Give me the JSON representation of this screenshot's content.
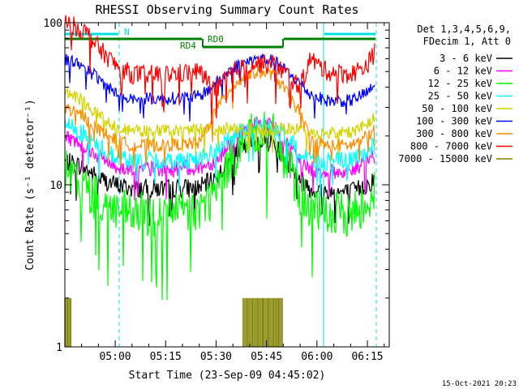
{
  "chart_data": {
    "type": "line",
    "title": "RHESSI Observing Summary Count Rates",
    "ylabel": "Count Rate (s⁻¹ detector⁻¹)",
    "xlabel": "Start Time (23-Sep-09 04:45:02)",
    "yscale": "log",
    "ylim": [
      1,
      100
    ],
    "xlim": [
      "04:45:02",
      "06:21:30"
    ],
    "y_ticks": [
      "1",
      "10",
      "100"
    ],
    "x_ticks": [
      "05:00",
      "05:15",
      "05:30",
      "05:45",
      "06:00",
      "06:15"
    ],
    "legend_title": [
      "Det 1,3,4,5,6,9,",
      "FDecim 1, Att 0"
    ],
    "legend_position": "right, outside plot",
    "series": [
      {
        "name": "3 - 6 keV",
        "color": "#000000",
        "x": [
          "04:45",
          "04:50",
          "04:55",
          "05:00",
          "05:05",
          "05:15",
          "05:25",
          "05:30",
          "05:35",
          "05:40",
          "05:43",
          "05:47",
          "05:50",
          "05:55",
          "05:58",
          "06:03",
          "06:10",
          "06:15",
          "06:21"
        ],
        "y": [
          14,
          13,
          11,
          10,
          9.5,
          9.5,
          9.6,
          11,
          15,
          18,
          19,
          18,
          15,
          11,
          9.5,
          9,
          9,
          10,
          12
        ]
      },
      {
        "name": "6 - 12 keV",
        "color": "#ff00ff",
        "x": [
          "04:45",
          "04:50",
          "04:55",
          "05:00",
          "05:05",
          "05:15",
          "05:25",
          "05:30",
          "05:35",
          "05:40",
          "05:43",
          "05:47",
          "05:50",
          "05:55",
          "05:58",
          "06:03",
          "06:10",
          "06:15",
          "06:21"
        ],
        "y": [
          20,
          18,
          15,
          13,
          12.5,
          12.5,
          12.8,
          14,
          19,
          23,
          24,
          23,
          19,
          14,
          12.5,
          12,
          12,
          14,
          17
        ]
      },
      {
        "name": "12 - 25 keV",
        "color": "#00ff00",
        "x": [
          "04:45",
          "04:50",
          "04:55",
          "05:00",
          "05:05",
          "05:15",
          "05:25",
          "05:30",
          "05:35",
          "05:40",
          "05:43",
          "05:47",
          "05:50",
          "05:55",
          "05:58",
          "06:03",
          "06:10",
          "06:15",
          "06:21"
        ],
        "y": [
          12,
          10,
          8,
          7,
          6.5,
          6.5,
          7,
          9,
          15,
          20,
          21,
          20,
          15,
          9,
          7,
          6.5,
          6.5,
          8,
          11
        ]
      },
      {
        "name": "25 - 50 keV",
        "color": "#00ffff",
        "x": [
          "04:45",
          "04:50",
          "04:55",
          "05:00",
          "05:05",
          "05:15",
          "05:25",
          "05:30",
          "05:35",
          "05:40",
          "05:43",
          "05:47",
          "05:50",
          "05:55",
          "05:58",
          "06:03",
          "06:10",
          "06:15",
          "06:21"
        ],
        "y": [
          24,
          21,
          17,
          15,
          14,
          14,
          14.5,
          16,
          20,
          22,
          23,
          22,
          20,
          16,
          14.5,
          14,
          14,
          16,
          20
        ]
      },
      {
        "name": "50 - 100 keV",
        "color": "#d4d400",
        "x": [
          "04:45",
          "04:50",
          "04:55",
          "05:00",
          "05:05",
          "05:15",
          "05:25",
          "05:30",
          "05:35",
          "05:40",
          "05:43",
          "05:47",
          "05:50",
          "05:55",
          "05:58",
          "06:03",
          "06:10",
          "06:15",
          "06:21"
        ],
        "y": [
          38,
          33,
          27,
          23,
          21.5,
          21.5,
          22,
          22,
          22,
          22,
          22,
          22,
          22,
          22,
          21,
          21,
          21,
          24,
          31
        ]
      },
      {
        "name": "100 - 300 keV",
        "color": "#0000ff",
        "x": [
          "04:45",
          "04:50",
          "04:55",
          "05:00",
          "05:05",
          "05:15",
          "05:25",
          "05:30",
          "05:35",
          "05:40",
          "05:43",
          "05:47",
          "05:50",
          "05:55",
          "05:58",
          "06:03",
          "06:10",
          "06:15",
          "06:21"
        ],
        "y": [
          60,
          55,
          45,
          37,
          34,
          34,
          35,
          42,
          53,
          58,
          60,
          58,
          52,
          42,
          36,
          33,
          33,
          37,
          48
        ]
      },
      {
        "name": "300 - 800 keV",
        "color": "#ff8c00",
        "x": [
          "04:45",
          "04:50",
          "04:55",
          "05:00",
          "05:05",
          "05:15",
          "05:25",
          "05:30",
          "05:35",
          "05:40",
          "05:43",
          "05:47",
          "05:50",
          "05:55",
          "05:58",
          "06:03",
          "06:10",
          "06:15",
          "06:21"
        ],
        "y": [
          30,
          27,
          22,
          19,
          17.5,
          17.5,
          18,
          29,
          41,
          48,
          50,
          48,
          40,
          28,
          19,
          17.5,
          17.5,
          20,
          26
        ]
      },
      {
        "name": "800 - 7000 keV",
        "color": "#ff0000",
        "x": [
          "04:45",
          "04:48",
          "04:52",
          "04:55",
          "05:00",
          "05:05",
          "05:15",
          "05:25",
          "05:30",
          "05:35",
          "05:40",
          "05:43",
          "05:47",
          "05:50",
          "05:55",
          "05:58",
          "06:03",
          "06:10",
          "06:15",
          "06:21"
        ],
        "y": [
          100,
          95,
          85,
          70,
          55,
          48,
          48,
          50,
          38,
          50,
          55,
          56,
          55,
          50,
          40,
          60,
          50,
          48,
          55,
          90
        ]
      },
      {
        "name": "7000 - 15000 keV",
        "color": "#808000",
        "x": [
          "04:45",
          "04:46",
          "04:47",
          "05:38",
          "05:40",
          "05:42",
          "05:44",
          "05:46",
          "05:48",
          "05:50"
        ],
        "y": [
          1,
          2,
          1,
          1,
          2,
          2,
          2,
          2,
          2,
          1
        ]
      }
    ],
    "annotations": [
      {
        "text": "N",
        "color": "#00e0e0"
      },
      {
        "text": "RD4",
        "color": "#008000"
      },
      {
        "text": "RD0",
        "color": "#008000"
      }
    ],
    "timestamp": "15-Oct-2021 20:23"
  }
}
